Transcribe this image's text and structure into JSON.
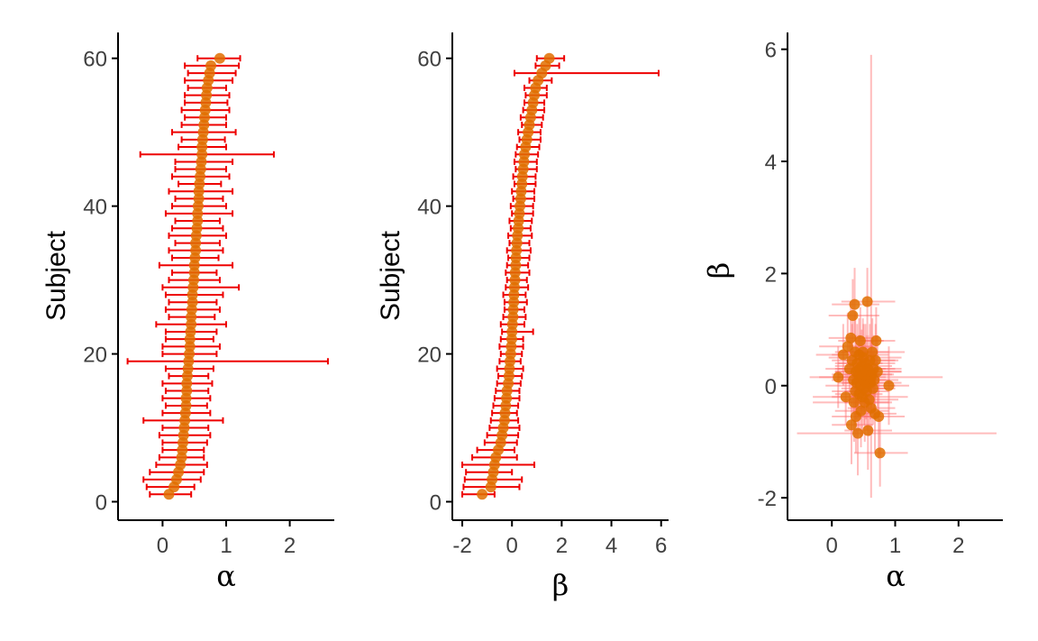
{
  "colors": {
    "point": "#E06E00",
    "errorbar": "#EE0000",
    "errorbar_faint": "#FF6A6A",
    "axis": "#000000",
    "tick_label": "#404040"
  },
  "chart_data": [
    {
      "type": "scatter",
      "id": "alpha-by-subject",
      "xlabel": "α",
      "ylabel": "Subject",
      "xlim": [
        -0.7,
        2.7
      ],
      "ylim": [
        -2.5,
        63.5
      ],
      "xticks": [
        0,
        1,
        2
      ],
      "yticks": [
        0,
        20,
        40,
        60
      ],
      "grid": false,
      "series": [
        {
          "y": [
            1,
            2,
            3,
            4,
            5,
            6,
            7,
            8,
            9,
            10,
            11,
            12,
            13,
            14,
            15,
            16,
            17,
            18,
            19,
            20,
            21,
            22,
            23,
            24,
            25,
            26,
            27,
            28,
            29,
            30,
            31,
            32,
            33,
            34,
            35,
            36,
            37,
            38,
            39,
            40,
            41,
            42,
            43,
            44,
            45,
            46,
            47,
            48,
            49,
            50,
            51,
            52,
            53,
            54,
            55,
            56,
            57,
            58,
            59,
            60
          ],
          "x": [
            0.1,
            0.18,
            0.22,
            0.25,
            0.28,
            0.3,
            0.31,
            0.32,
            0.33,
            0.34,
            0.35,
            0.36,
            0.37,
            0.37,
            0.38,
            0.38,
            0.39,
            0.4,
            0.41,
            0.42,
            0.43,
            0.43,
            0.44,
            0.45,
            0.45,
            0.46,
            0.47,
            0.47,
            0.48,
            0.49,
            0.5,
            0.5,
            0.51,
            0.52,
            0.52,
            0.53,
            0.54,
            0.55,
            0.55,
            0.56,
            0.57,
            0.57,
            0.58,
            0.59,
            0.6,
            0.61,
            0.62,
            0.62,
            0.63,
            0.64,
            0.65,
            0.66,
            0.67,
            0.68,
            0.69,
            0.7,
            0.72,
            0.74,
            0.76,
            0.9
          ],
          "xmin": [
            -0.2,
            -0.25,
            -0.3,
            -0.2,
            -0.1,
            -0.05,
            0.0,
            0.0,
            -0.05,
            0.0,
            -0.3,
            0.0,
            0.05,
            0.0,
            0.05,
            0.0,
            0.1,
            0.05,
            -0.55,
            0.0,
            0.0,
            0.05,
            0.05,
            -0.1,
            0.1,
            0.05,
            0.1,
            0.05,
            0.0,
            0.1,
            0.15,
            -0.05,
            0.15,
            0.1,
            0.2,
            0.1,
            0.15,
            0.2,
            0.05,
            0.15,
            0.2,
            0.1,
            0.25,
            0.15,
            0.2,
            0.2,
            -0.35,
            0.25,
            0.3,
            0.15,
            0.3,
            0.35,
            0.3,
            0.35,
            0.35,
            0.4,
            0.35,
            0.4,
            0.35,
            0.55
          ],
          "xmax": [
            0.45,
            0.5,
            0.6,
            0.65,
            0.7,
            0.65,
            0.65,
            0.7,
            0.75,
            0.72,
            0.95,
            0.75,
            0.7,
            0.75,
            0.72,
            0.78,
            0.72,
            0.8,
            2.6,
            0.85,
            0.9,
            0.8,
            0.85,
            1.0,
            0.82,
            0.9,
            0.85,
            0.95,
            1.2,
            0.9,
            0.85,
            1.1,
            0.88,
            0.95,
            0.9,
            1.0,
            0.95,
            0.9,
            1.1,
            1.0,
            0.95,
            1.1,
            0.92,
            1.05,
            1.0,
            1.1,
            1.75,
            1.0,
            0.98,
            1.15,
            1.0,
            1.0,
            1.05,
            1.02,
            1.05,
            1.0,
            1.1,
            1.15,
            1.2,
            1.22
          ]
        }
      ]
    },
    {
      "type": "scatter",
      "id": "beta-by-subject",
      "xlabel": "β",
      "ylabel": "Subject",
      "xlim": [
        -2.4,
        6.3
      ],
      "ylim": [
        -2.5,
        63.5
      ],
      "xticks": [
        -2,
        0,
        2,
        4,
        6
      ],
      "yticks": [
        0,
        20,
        40,
        60
      ],
      "grid": false,
      "series": [
        {
          "y": [
            1,
            2,
            3,
            4,
            5,
            6,
            7,
            8,
            9,
            10,
            11,
            12,
            13,
            14,
            15,
            16,
            17,
            18,
            19,
            20,
            21,
            22,
            23,
            24,
            25,
            26,
            27,
            28,
            29,
            30,
            31,
            32,
            33,
            34,
            35,
            36,
            37,
            38,
            39,
            40,
            41,
            42,
            43,
            44,
            45,
            46,
            47,
            48,
            49,
            50,
            51,
            52,
            53,
            54,
            55,
            56,
            57,
            58,
            59,
            60
          ],
          "x": [
            -1.2,
            -0.85,
            -0.8,
            -0.75,
            -0.7,
            -0.65,
            -0.55,
            -0.45,
            -0.4,
            -0.35,
            -0.3,
            -0.28,
            -0.25,
            -0.22,
            -0.2,
            -0.15,
            -0.12,
            -0.1,
            -0.08,
            -0.05,
            -0.03,
            -0.01,
            0.0,
            0.02,
            0.04,
            0.05,
            0.07,
            0.08,
            0.1,
            0.12,
            0.13,
            0.15,
            0.16,
            0.18,
            0.2,
            0.22,
            0.25,
            0.27,
            0.3,
            0.32,
            0.35,
            0.37,
            0.4,
            0.42,
            0.45,
            0.48,
            0.5,
            0.55,
            0.6,
            0.65,
            0.7,
            0.75,
            0.8,
            0.85,
            0.9,
            0.95,
            1.05,
            1.2,
            1.35,
            1.5
          ],
          "xmin": [
            -2.0,
            -1.95,
            -1.9,
            -1.85,
            -2.0,
            -1.6,
            -1.4,
            -1.1,
            -1.0,
            -0.9,
            -0.85,
            -0.8,
            -0.75,
            -0.7,
            -0.65,
            -0.6,
            -0.55,
            -0.6,
            -0.5,
            -0.45,
            -0.5,
            -0.45,
            -0.4,
            -0.45,
            -0.35,
            -0.3,
            -0.3,
            -0.35,
            -0.25,
            -0.2,
            -0.25,
            -0.2,
            -0.15,
            -0.2,
            -0.1,
            -0.15,
            -0.05,
            -0.1,
            0.0,
            -0.05,
            0.05,
            0.0,
            0.1,
            0.05,
            0.15,
            0.1,
            0.15,
            0.2,
            0.3,
            0.25,
            0.4,
            0.35,
            0.45,
            0.5,
            0.55,
            0.5,
            0.7,
            0.1,
            0.95,
            1.0
          ],
          "xmax": [
            -0.7,
            0.3,
            0.4,
            0.0,
            0.9,
            0.2,
            0.1,
            0.2,
            0.25,
            0.3,
            0.25,
            0.2,
            0.25,
            0.3,
            0.3,
            0.35,
            0.4,
            0.45,
            0.35,
            0.4,
            0.45,
            0.45,
            0.85,
            0.5,
            0.55,
            0.5,
            0.6,
            0.55,
            0.65,
            0.6,
            0.7,
            0.65,
            0.7,
            0.75,
            0.7,
            0.8,
            0.75,
            0.8,
            0.85,
            0.85,
            0.9,
            0.9,
            0.95,
            0.95,
            1.0,
            1.0,
            1.05,
            1.1,
            1.15,
            1.15,
            1.2,
            1.25,
            1.3,
            1.3,
            1.4,
            1.4,
            1.6,
            5.9,
            1.9,
            2.1
          ]
        }
      ]
    },
    {
      "type": "scatter",
      "id": "beta-vs-alpha",
      "xlabel": "α",
      "ylabel": "β",
      "xlim": [
        -0.7,
        2.7
      ],
      "ylim": [
        -2.4,
        6.3
      ],
      "xticks": [
        0,
        1,
        2
      ],
      "yticks": [
        -2,
        0,
        2,
        4,
        6
      ],
      "grid": false,
      "series": [
        {
          "x": [
            0.1,
            0.18,
            0.22,
            0.25,
            0.28,
            0.3,
            0.31,
            0.32,
            0.33,
            0.34,
            0.35,
            0.36,
            0.37,
            0.37,
            0.38,
            0.38,
            0.39,
            0.4,
            0.41,
            0.42,
            0.43,
            0.43,
            0.44,
            0.45,
            0.45,
            0.46,
            0.47,
            0.47,
            0.48,
            0.49,
            0.5,
            0.5,
            0.51,
            0.52,
            0.52,
            0.53,
            0.54,
            0.55,
            0.55,
            0.56,
            0.57,
            0.57,
            0.58,
            0.59,
            0.6,
            0.61,
            0.62,
            0.62,
            0.63,
            0.64,
            0.65,
            0.66,
            0.67,
            0.68,
            0.69,
            0.7,
            0.72,
            0.74,
            0.76,
            0.9
          ],
          "y": [
            0.15,
            0.55,
            -0.2,
            0.7,
            0.3,
            0.85,
            -0.7,
            0.45,
            1.25,
            0.1,
            -0.3,
            1.45,
            0.6,
            -0.1,
            0.25,
            -0.55,
            0.05,
            0.4,
            -0.85,
            0.2,
            0.55,
            -0.15,
            0.3,
            0.0,
            0.8,
            -0.45,
            0.15,
            0.35,
            -0.2,
            0.6,
            0.1,
            0.5,
            -0.05,
            0.2,
            -0.3,
            0.4,
            0.05,
            -0.1,
            0.25,
            1.5,
            -0.8,
            0.3,
            0.1,
            -0.25,
            0.45,
            0.05,
            0.15,
            -0.4,
            0.2,
            0.6,
            -0.05,
            0.3,
            0.1,
            -0.5,
            0.45,
            0.8,
            0.25,
            -0.55,
            -1.2,
            0.0
          ],
          "xmin": [
            -0.2,
            -0.25,
            -0.3,
            -0.2,
            -0.1,
            -0.05,
            0.0,
            0.0,
            -0.05,
            0.0,
            -0.3,
            0.0,
            0.05,
            0.0,
            0.05,
            0.0,
            0.1,
            0.05,
            -0.55,
            0.0,
            0.0,
            0.05,
            0.05,
            -0.1,
            0.1,
            0.05,
            0.1,
            0.05,
            0.0,
            0.1,
            0.15,
            -0.05,
            0.15,
            0.1,
            0.2,
            0.1,
            0.15,
            0.2,
            0.05,
            0.15,
            0.2,
            0.1,
            0.25,
            0.15,
            0.2,
            0.2,
            -0.35,
            0.25,
            0.3,
            0.15,
            0.3,
            0.35,
            0.3,
            0.35,
            0.35,
            0.4,
            0.35,
            0.4,
            0.35,
            0.55
          ],
          "xmax": [
            0.45,
            0.5,
            0.6,
            0.65,
            0.7,
            0.65,
            0.65,
            0.7,
            0.75,
            0.72,
            0.95,
            0.75,
            0.7,
            0.75,
            0.72,
            0.78,
            0.72,
            0.8,
            2.6,
            0.85,
            0.9,
            0.8,
            0.85,
            1.0,
            0.82,
            0.9,
            0.85,
            0.95,
            1.2,
            0.9,
            0.85,
            1.1,
            0.88,
            0.95,
            0.9,
            1.0,
            0.95,
            0.9,
            1.1,
            1.0,
            0.95,
            1.1,
            0.92,
            1.05,
            1.0,
            1.1,
            1.75,
            1.0,
            0.98,
            1.15,
            1.0,
            1.0,
            1.05,
            1.02,
            1.05,
            1.0,
            1.1,
            1.15,
            1.2,
            1.22
          ],
          "ymin": [
            -0.4,
            0.0,
            -0.7,
            0.1,
            -0.3,
            0.2,
            -1.4,
            -0.2,
            0.6,
            -0.5,
            -1.0,
            0.8,
            -0.1,
            -0.7,
            -0.4,
            -1.2,
            -0.6,
            -0.3,
            -1.6,
            -0.4,
            -0.1,
            -0.8,
            -0.3,
            -0.6,
            0.2,
            -1.1,
            -0.5,
            -0.3,
            -0.9,
            0.0,
            -0.5,
            -0.1,
            -0.7,
            -0.4,
            -1.0,
            -0.3,
            -0.6,
            -0.8,
            -0.4,
            0.9,
            -1.5,
            -0.3,
            -0.5,
            -0.9,
            -0.2,
            -0.6,
            -0.5,
            -2.0,
            -0.4,
            0.0,
            -0.7,
            -0.3,
            -0.5,
            -1.2,
            -0.2,
            0.2,
            -0.4,
            -1.3,
            -1.8,
            -0.7
          ],
          "ymax": [
            0.7,
            1.1,
            0.3,
            1.3,
            0.9,
            1.5,
            -0.1,
            1.1,
            1.9,
            0.7,
            0.4,
            2.1,
            1.3,
            0.5,
            0.9,
            0.1,
            0.7,
            1.1,
            -0.1,
            0.9,
            1.2,
            0.5,
            0.9,
            0.6,
            1.4,
            0.2,
            0.8,
            1.0,
            0.5,
            1.2,
            0.7,
            1.1,
            0.6,
            0.8,
            0.3,
            1.1,
            0.7,
            0.6,
            0.9,
            2.1,
            -0.1,
            0.9,
            0.7,
            0.4,
            1.1,
            0.7,
            0.8,
            5.9,
            0.8,
            1.2,
            0.6,
            0.9,
            0.7,
            0.2,
            1.1,
            1.4,
            0.9,
            0.2,
            -0.6,
            0.7
          ]
        }
      ]
    }
  ]
}
